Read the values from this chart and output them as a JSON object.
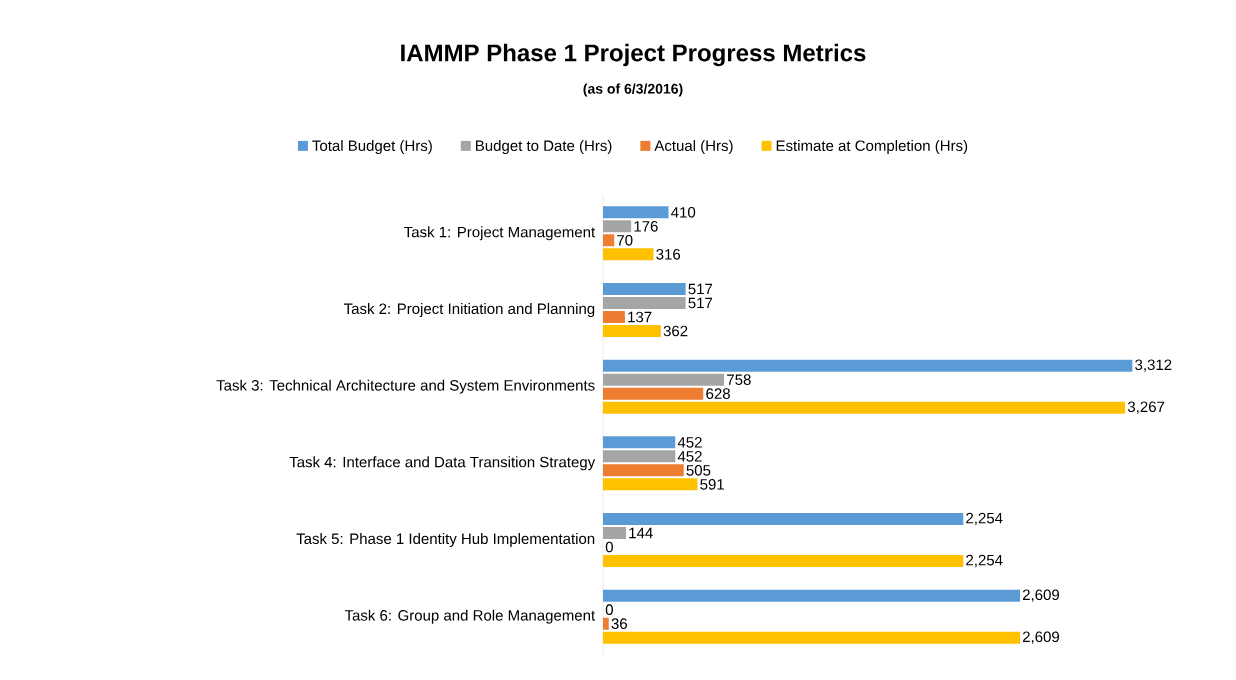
{
  "chart_data": {
    "type": "bar",
    "orientation": "horizontal",
    "title": "IAMMP Phase 1 Project Progress Metrics",
    "subtitle": "(as of 6/3/2016)",
    "categories": [
      "Task 1: Project Management",
      "Task 2: Project Initiation and Planning",
      "Task 3: Technical Architecture and System Environments",
      "Task 4: Interface and Data Transition Strategy",
      "Task 5: Phase 1 Identity Hub Implementation",
      "Task 6: Group and Role Management"
    ],
    "series": [
      {
        "name": "Total Budget (Hrs)",
        "color": "#5b9bd5",
        "values": [
          410,
          517,
          3312,
          452,
          2254,
          2609
        ],
        "value_labels": [
          "410",
          "517",
          "3,312",
          "452",
          "2,254",
          "2,609"
        ]
      },
      {
        "name": "Budget to Date (Hrs)",
        "color": "#a5a5a5",
        "values": [
          176,
          517,
          758,
          452,
          144,
          0
        ],
        "value_labels": [
          "176",
          "517",
          "758",
          "452",
          "144",
          "0"
        ]
      },
      {
        "name": "Actual (Hrs)",
        "color": "#ed7d31",
        "values": [
          70,
          137,
          628,
          505,
          0,
          36
        ],
        "value_labels": [
          "70",
          "137",
          "628",
          "505",
          "0",
          "36"
        ]
      },
      {
        "name": "Estimate at Completion (Hrs)",
        "color": "#ffc000",
        "values": [
          316,
          362,
          3267,
          591,
          2254,
          2609
        ],
        "value_labels": [
          "316",
          "362",
          "3,267",
          "591",
          "2,254",
          "2,609"
        ]
      }
    ],
    "legend": "top"
  }
}
